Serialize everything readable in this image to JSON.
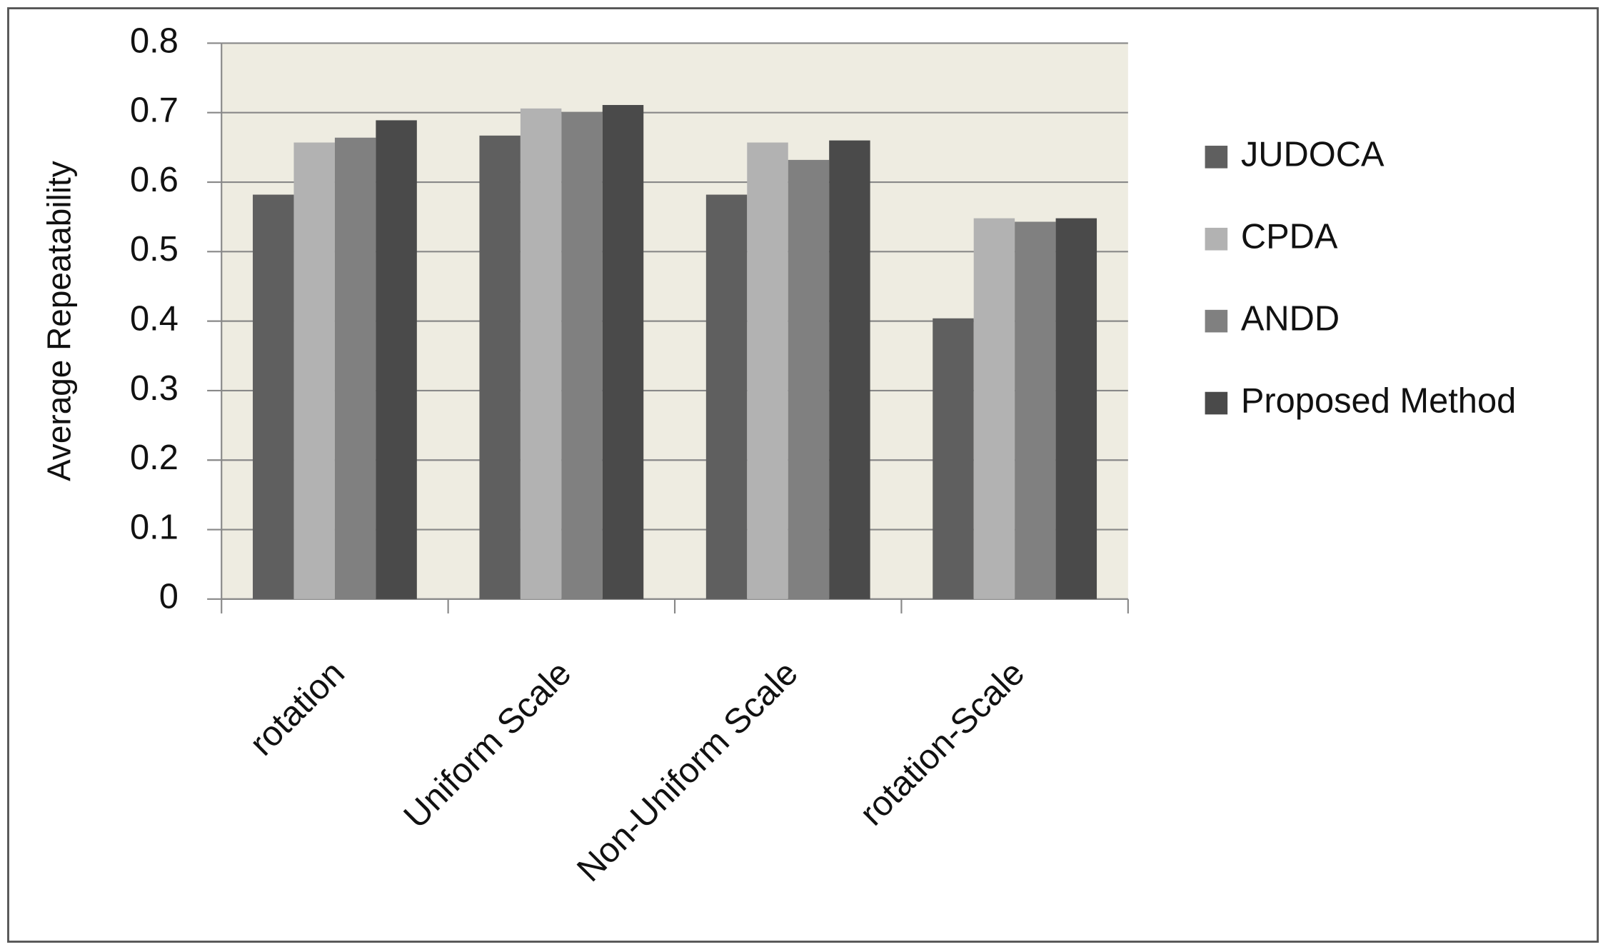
{
  "chart_data": {
    "type": "bar",
    "y_label": "Average Repeatability",
    "categories": [
      "rotation",
      "Uniform Scale",
      "Non-Uniform Scale",
      "rotation-Scale"
    ],
    "series": [
      {
        "name": "JUDOCA",
        "color": "#5f5f5f",
        "values": [
          0.582,
          0.667,
          0.582,
          0.404
        ]
      },
      {
        "name": "CPDA",
        "color": "#b2b2b2",
        "values": [
          0.657,
          0.706,
          0.657,
          0.548
        ]
      },
      {
        "name": "ANDD",
        "color": "#808080",
        "values": [
          0.664,
          0.701,
          0.632,
          0.543
        ]
      },
      {
        "name": "Proposed Method",
        "color": "#4a4a4a",
        "values": [
          0.689,
          0.711,
          0.66,
          0.548
        ]
      }
    ],
    "ylim": [
      0,
      0.8
    ],
    "yticks": [
      0,
      0.1,
      0.2,
      0.3,
      0.4,
      0.5,
      0.6,
      0.7,
      0.8
    ],
    "grid": true,
    "legend": "right",
    "plot_background": "#eeece1"
  }
}
